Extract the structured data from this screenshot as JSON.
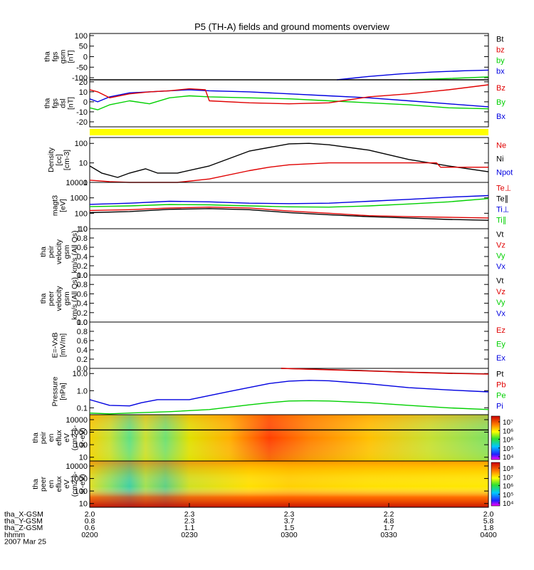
{
  "colors": {
    "black": "#000000",
    "red": "#e00000",
    "green": "#00d000",
    "blue": "#0000e0",
    "yellow": "#ffff00"
  },
  "chart_data": [
    {
      "title": "P5 (TH-A) fields and ground moments overview",
      "type": "line",
      "panel_id": "p1",
      "ylabel": [
        "tha",
        "fgs",
        "gsm",
        "[nT]"
      ],
      "yticks": [
        "100",
        "50",
        "0",
        "-50",
        "-100"
      ],
      "ytick_values": [
        100,
        50,
        0,
        -50,
        -100
      ],
      "ylim": [
        -110,
        110
      ],
      "legend": [
        {
          "label": "Bt",
          "color": "black"
        },
        {
          "label": "bz",
          "color": "red"
        },
        {
          "label": "by",
          "color": "green"
        },
        {
          "label": "bx",
          "color": "blue"
        }
      ],
      "series": [
        {
          "name": "bx",
          "color": "blue",
          "x": [
            0.62,
            0.7,
            0.78,
            0.86,
            0.94,
            1.0
          ],
          "y": [
            -110,
            -94,
            -82,
            -73,
            -67,
            -64
          ]
        },
        {
          "name": "by",
          "color": "green",
          "x": [
            0.8,
            0.9,
            1.0
          ],
          "y": [
            -110,
            -104,
            -96
          ]
        }
      ],
      "hlines": [
        {
          "y": -110,
          "color": "black"
        }
      ]
    },
    {
      "type": "line",
      "panel_id": "p2",
      "ylabel": [
        "tha",
        "fgs",
        "dsl",
        "[nT]"
      ],
      "yticks": [
        "20",
        "10",
        "0",
        "-10",
        "-20"
      ],
      "ytick_values": [
        20,
        10,
        0,
        -10,
        -20
      ],
      "ylim": [
        -25,
        22
      ],
      "legend": [
        {
          "label": "Bz",
          "color": "red"
        },
        {
          "label": "By",
          "color": "green"
        },
        {
          "label": "Bx",
          "color": "blue"
        }
      ],
      "series": [
        {
          "name": "Bx",
          "color": "blue",
          "x": [
            0,
            0.02,
            0.05,
            0.1,
            0.15,
            0.2,
            0.25,
            0.3,
            0.4,
            0.5,
            0.6,
            0.7,
            0.8,
            0.9,
            1.0
          ],
          "y": [
            3,
            0,
            5,
            9,
            10,
            11,
            12,
            11,
            10,
            8,
            6,
            4,
            1,
            -2,
            -5
          ]
        },
        {
          "name": "By",
          "color": "green",
          "x": [
            0,
            0.02,
            0.05,
            0.1,
            0.15,
            0.2,
            0.25,
            0.3,
            0.4,
            0.5,
            0.6,
            0.7,
            0.8,
            0.9,
            1.0
          ],
          "y": [
            -6,
            -8,
            -3,
            1,
            -2,
            4,
            6,
            5,
            4,
            3,
            1,
            -1,
            -3,
            -6,
            -7
          ]
        },
        {
          "name": "Bz",
          "color": "red",
          "x": [
            0,
            0.02,
            0.05,
            0.1,
            0.15,
            0.2,
            0.25,
            0.29,
            0.3,
            0.4,
            0.5,
            0.6,
            0.7,
            0.8,
            0.9,
            1.0
          ],
          "y": [
            12,
            10,
            4,
            8,
            10,
            11,
            13,
            12,
            1,
            -1,
            -2,
            -1,
            5,
            8,
            12,
            17
          ]
        }
      ]
    },
    {
      "type": "bar",
      "panel_id": "p3",
      "ylabel": [],
      "yticks": [],
      "ytick_values": [],
      "ylim": [
        0,
        1
      ],
      "legend": [],
      "series": [],
      "strip_color": "yellow"
    },
    {
      "type": "line",
      "panel_id": "p4",
      "ylabel": [
        "Density",
        "[cc]",
        "[cm-3]"
      ],
      "yticks": [
        "100",
        "10",
        "1"
      ],
      "ytick_values": [
        100,
        10,
        1
      ],
      "ylim": [
        1,
        200
      ],
      "ylog": true,
      "legend": [
        {
          "label": "Ne",
          "color": "red"
        },
        {
          "label": "Ni",
          "color": "black"
        },
        {
          "label": "Npot",
          "color": "blue"
        }
      ],
      "series": [
        {
          "name": "Ni",
          "color": "black",
          "x": [
            0,
            0.03,
            0.07,
            0.1,
            0.14,
            0.17,
            0.22,
            0.3,
            0.4,
            0.5,
            0.55,
            0.6,
            0.7,
            0.8,
            0.9,
            1.0
          ],
          "y": [
            7,
            3,
            1.8,
            3,
            5,
            3,
            3,
            7,
            40,
            95,
            100,
            85,
            45,
            15,
            7,
            3.5
          ]
        },
        {
          "name": "Ne",
          "color": "red",
          "x": [
            0,
            0.05,
            0.1,
            0.22,
            0.3,
            0.4,
            0.45,
            0.5,
            0.6,
            0.7,
            0.8,
            0.87,
            0.88,
            1.0
          ],
          "y": [
            1.3,
            1.1,
            1,
            1,
            1.5,
            4,
            6,
            8,
            10,
            10,
            10,
            10,
            6,
            6
          ]
        }
      ]
    },
    {
      "type": "line",
      "panel_id": "p5",
      "ylabel": [
        "magt3",
        "[eV]"
      ],
      "yticks": [
        "10000",
        "1000",
        "100",
        "10"
      ],
      "ytick_values": [
        10000,
        1000,
        100,
        10
      ],
      "ylim": [
        10,
        10000
      ],
      "ylog": true,
      "legend": [
        {
          "label": "Te⊥",
          "color": "red"
        },
        {
          "label": "Te∥",
          "color": "black"
        },
        {
          "label": "Ti⊥",
          "color": "blue"
        },
        {
          "label": "Ti∥",
          "color": "green"
        }
      ],
      "series": [
        {
          "name": "Ti⊥",
          "color": "blue",
          "x": [
            0,
            0.1,
            0.2,
            0.3,
            0.4,
            0.5,
            0.6,
            0.7,
            0.8,
            0.9,
            1.0
          ],
          "y": [
            380,
            450,
            600,
            550,
            450,
            420,
            450,
            600,
            800,
            1100,
            1400
          ]
        },
        {
          "name": "Ti∥",
          "color": "green",
          "x": [
            0,
            0.1,
            0.2,
            0.3,
            0.4,
            0.5,
            0.6,
            0.7,
            0.8,
            0.9,
            1.0
          ],
          "y": [
            270,
            300,
            370,
            350,
            300,
            260,
            250,
            300,
            400,
            550,
            900
          ]
        },
        {
          "name": "Te⊥",
          "color": "red",
          "x": [
            0,
            0.1,
            0.2,
            0.3,
            0.4,
            0.5,
            0.6,
            0.7,
            0.8,
            0.9,
            1.0
          ],
          "y": [
            150,
            170,
            220,
            250,
            220,
            140,
            100,
            70,
            60,
            55,
            50
          ]
        },
        {
          "name": "Te∥",
          "color": "black",
          "x": [
            0,
            0.1,
            0.2,
            0.3,
            0.4,
            0.5,
            0.6,
            0.7,
            0.8,
            0.9,
            1.0
          ],
          "y": [
            110,
            130,
            180,
            200,
            170,
            110,
            80,
            60,
            50,
            40,
            35
          ]
        }
      ]
    },
    {
      "type": "line",
      "panel_id": "p6",
      "ylabel": [
        "tha",
        "peir",
        "velocity",
        "gsm",
        "km/s (All Qs)"
      ],
      "yticks": [
        "1.0",
        "0.8",
        "0.6",
        "0.4",
        "0.2",
        "0.0"
      ],
      "ytick_values": [
        1.0,
        0.8,
        0.6,
        0.4,
        0.2,
        0.0
      ],
      "ylim": [
        0,
        1
      ],
      "legend": [
        {
          "label": "Vt",
          "color": "black"
        },
        {
          "label": "Vz",
          "color": "red"
        },
        {
          "label": "Vy",
          "color": "green"
        },
        {
          "label": "Vx",
          "color": "blue"
        }
      ],
      "series": []
    },
    {
      "type": "line",
      "panel_id": "p7",
      "ylabel": [
        "tha",
        "peer",
        "velocity",
        "gsm",
        "km/s (All Qs)"
      ],
      "yticks": [
        "1.0",
        "0.8",
        "0.6",
        "0.4",
        "0.2",
        "0.0"
      ],
      "ytick_values": [
        1.0,
        0.8,
        0.6,
        0.4,
        0.2,
        0.0
      ],
      "ylim": [
        0,
        1
      ],
      "legend": [
        {
          "label": "Vt",
          "color": "black"
        },
        {
          "label": "Vz",
          "color": "red"
        },
        {
          "label": "Vy",
          "color": "green"
        },
        {
          "label": "Vx",
          "color": "blue"
        }
      ],
      "series": []
    },
    {
      "type": "line",
      "panel_id": "p8",
      "ylabel": [
        "E=-VxB",
        "[mV/m]"
      ],
      "yticks": [
        "1.0",
        "0.8",
        "0.6",
        "0.4",
        "0.2",
        "0.0"
      ],
      "ytick_values": [
        1.0,
        0.8,
        0.6,
        0.4,
        0.2,
        0.0
      ],
      "ylim": [
        0,
        1
      ],
      "legend": [
        {
          "label": "Ez",
          "color": "red"
        },
        {
          "label": "Ey",
          "color": "green"
        },
        {
          "label": "Ex",
          "color": "blue"
        }
      ],
      "series": []
    },
    {
      "type": "line",
      "panel_id": "p9",
      "ylabel": [
        "Pressure",
        "[nPa]"
      ],
      "yticks": [
        "10.0",
        "1.0",
        "0.1"
      ],
      "ytick_values": [
        10,
        1,
        0.1
      ],
      "ylim": [
        0.04,
        20
      ],
      "ylog": true,
      "legend": [
        {
          "label": "Pt",
          "color": "black"
        },
        {
          "label": "Pb",
          "color": "red"
        },
        {
          "label": "Pe",
          "color": "green"
        },
        {
          "label": "Pi",
          "color": "blue"
        }
      ],
      "series": [
        {
          "name": "Pt",
          "color": "black",
          "x": [
            0.48,
            0.6,
            0.7,
            0.8,
            0.9,
            1.0
          ],
          "y": [
            20,
            17,
            14.5,
            12,
            10.5,
            9.5
          ]
        },
        {
          "name": "Pb",
          "color": "red",
          "x": [
            0.48,
            0.6,
            0.7,
            0.8,
            0.9,
            1.0
          ],
          "y": [
            20,
            16.5,
            14,
            11.8,
            10.2,
            9.2
          ]
        },
        {
          "name": "Pi",
          "color": "blue",
          "x": [
            0,
            0.05,
            0.1,
            0.13,
            0.17,
            0.25,
            0.35,
            0.45,
            0.5,
            0.55,
            0.6,
            0.7,
            0.8,
            0.9,
            1.0
          ],
          "y": [
            0.3,
            0.14,
            0.13,
            0.2,
            0.3,
            0.3,
            0.9,
            2.6,
            3.6,
            4,
            3.8,
            2.5,
            1.5,
            1.1,
            0.85
          ]
        },
        {
          "name": "Pe",
          "color": "green",
          "x": [
            0,
            0.05,
            0.1,
            0.2,
            0.3,
            0.4,
            0.45,
            0.5,
            0.55,
            0.6,
            0.7,
            0.8,
            0.9,
            1.0
          ],
          "y": [
            0.05,
            0.045,
            0.05,
            0.06,
            0.08,
            0.15,
            0.2,
            0.25,
            0.26,
            0.25,
            0.2,
            0.14,
            0.1,
            0.08
          ]
        }
      ]
    },
    {
      "type": "heatmap",
      "panel_id": "p10",
      "ylabel": [
        "tha",
        "peir",
        "en",
        "eflux",
        "eV",
        "(cm2-s-",
        "sr-eV)"
      ],
      "yticks": [
        "10000",
        "1000",
        "100",
        "10"
      ],
      "ytick_values": [
        10000,
        1000,
        100,
        10
      ],
      "ylim": [
        5,
        25000
      ],
      "ylog": true,
      "colorbar": {
        "labels": [
          "10⁷",
          "10⁶",
          "10⁶",
          "10⁵",
          "10⁴"
        ],
        "range": [
          4,
          7
        ]
      },
      "hlines": [
        {
          "y": 1500,
          "color": "black"
        }
      ],
      "legend": [],
      "series": []
    },
    {
      "type": "heatmap",
      "panel_id": "p11",
      "ylabel": [
        "tha",
        "peer",
        "en",
        "eflux",
        "eV",
        "(cm2-s-",
        "sr-eV)"
      ],
      "yticks": [
        "10000",
        "1000",
        "100",
        "10"
      ],
      "ytick_values": [
        10000,
        1000,
        100,
        10
      ],
      "ylim": [
        5,
        25000
      ],
      "ylog": true,
      "colorbar": {
        "labels": [
          "10⁸",
          "10⁷",
          "10⁶",
          "10⁵",
          "10⁴"
        ],
        "range": [
          4,
          8
        ]
      },
      "legend": [],
      "series": []
    }
  ],
  "xaxis": {
    "rows": [
      {
        "label": "tha_X-GSM",
        "values": [
          "2.0",
          "2.3",
          "2.3",
          "2.2",
          "2.0"
        ]
      },
      {
        "label": "tha_Y-GSM",
        "values": [
          "0.8",
          "2.3",
          "3.7",
          "4.8",
          "5.8"
        ]
      },
      {
        "label": "tha_Z-GSM",
        "values": [
          "0.6",
          "1.1",
          "1.5",
          "1.7",
          "1.8"
        ]
      },
      {
        "label": "hhmm",
        "values": [
          "0200",
          "0230",
          "0300",
          "0330",
          "0400"
        ]
      }
    ],
    "date": "2007 Mar 25"
  }
}
